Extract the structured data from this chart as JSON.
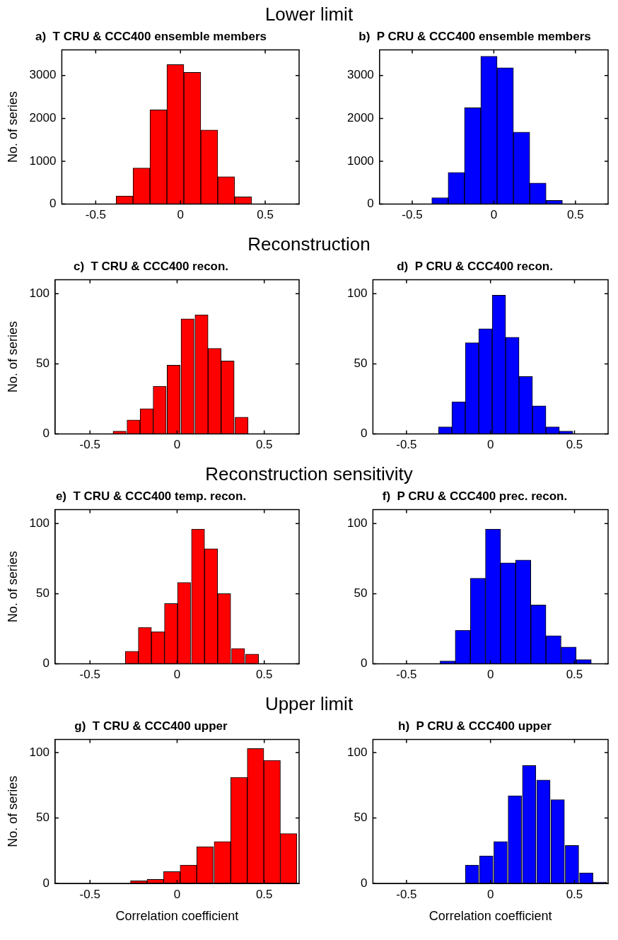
{
  "chart_data": [
    {
      "type": "histogram",
      "title": "a)  T CRU & CCC400 ensemble members",
      "annotations": [
        "Lower limit"
      ],
      "ylabel": "No. of series",
      "color": "#ff0000",
      "bins": [
        -0.38,
        -0.28,
        -0.18,
        -0.08,
        0.02,
        0.12,
        0.22,
        0.32,
        0.42
      ],
      "values": [
        190,
        840,
        2200,
        3255,
        3075,
        1730,
        640,
        170
      ],
      "xlim": [
        -0.7,
        0.7
      ],
      "xticks": [
        -0.5,
        0,
        0.5
      ],
      "ylim": [
        0,
        3600
      ],
      "yticks": [
        0,
        1000,
        2000,
        3000
      ],
      "grid": false
    },
    {
      "type": "histogram",
      "title": "b)  P CRU & CCC400 ensemble members",
      "color": "#0000ff",
      "bins": [
        -0.38,
        -0.28,
        -0.18,
        -0.08,
        0.02,
        0.12,
        0.22,
        0.32,
        0.42
      ],
      "values": [
        150,
        740,
        2250,
        3450,
        3180,
        1680,
        490,
        85
      ],
      "xlim": [
        -0.7,
        0.7
      ],
      "xticks": [
        -0.5,
        0,
        0.5
      ],
      "ylim": [
        0,
        3600
      ],
      "yticks": [
        0,
        1000,
        2000,
        3000
      ],
      "grid": false
    },
    {
      "type": "histogram",
      "title": "c)  T CRU & CCC400 recon.",
      "annotations": [
        "Reconstruction"
      ],
      "ylabel": "No. of series",
      "color": "#ff0000",
      "bins": [
        -0.37,
        -0.29,
        -0.21,
        -0.14,
        -0.06,
        0.02,
        0.1,
        0.18,
        0.25,
        0.33,
        0.41
      ],
      "values": [
        2,
        10,
        18,
        34,
        49,
        82,
        85,
        61,
        52,
        12
      ],
      "xlim": [
        -0.7,
        0.7
      ],
      "xticks": [
        -0.5,
        0,
        0.5
      ],
      "ylim": [
        0,
        110
      ],
      "yticks": [
        0,
        50,
        100
      ],
      "grid": false
    },
    {
      "type": "histogram",
      "title": "d)  P CRU & CCC400 recon.",
      "color": "#0000ff",
      "bins": [
        -0.31,
        -0.23,
        -0.15,
        -0.07,
        0.01,
        0.09,
        0.17,
        0.25,
        0.33,
        0.41,
        0.49
      ],
      "values": [
        5,
        23,
        65,
        75,
        99,
        69,
        41,
        20,
        5,
        2
      ],
      "xlim": [
        -0.7,
        0.7
      ],
      "xticks": [
        -0.5,
        0,
        0.5
      ],
      "ylim": [
        0,
        110
      ],
      "yticks": [
        0,
        50,
        100
      ],
      "grid": false
    },
    {
      "type": "histogram",
      "title": "e)  T CRU & CCC400 temp. recon.",
      "annotations": [
        "Reconstruction sensitivity"
      ],
      "ylabel": "No. of series",
      "color": "#ff0000",
      "bins": [
        -0.3,
        -0.22,
        -0.15,
        -0.07,
        0.0,
        0.08,
        0.16,
        0.23,
        0.31,
        0.39,
        0.47
      ],
      "values": [
        9,
        26,
        23,
        43,
        58,
        96,
        82,
        50,
        11,
        7
      ],
      "xlim": [
        -0.7,
        0.7
      ],
      "xticks": [
        -0.5,
        0,
        0.5
      ],
      "ylim": [
        0,
        110
      ],
      "yticks": [
        0,
        50,
        100
      ],
      "grid": false
    },
    {
      "type": "histogram",
      "title": "f)  P CRU & CCC400 prec. recon.",
      "color": "#0000ff",
      "bins": [
        -0.3,
        -0.21,
        -0.12,
        -0.03,
        0.06,
        0.15,
        0.24,
        0.33,
        0.42,
        0.51,
        0.6
      ],
      "values": [
        2,
        24,
        61,
        96,
        72,
        74,
        42,
        20,
        12,
        3
      ],
      "xlim": [
        -0.7,
        0.7
      ],
      "xticks": [
        -0.5,
        0,
        0.5
      ],
      "ylim": [
        0,
        110
      ],
      "yticks": [
        0,
        50,
        100
      ],
      "grid": false
    },
    {
      "type": "histogram",
      "title": "g)  T CRU & CCC400 upper",
      "annotations": [
        "Upper limit"
      ],
      "ylabel": "No. of series",
      "xlabel": "Correlation coefficient",
      "color": "#ff0000",
      "bins": [
        -0.27,
        -0.17,
        -0.08,
        0.02,
        0.11,
        0.21,
        0.31,
        0.4,
        0.5,
        0.59,
        0.69
      ],
      "values": [
        2,
        3,
        9,
        14,
        28,
        32,
        81,
        103,
        94,
        38
      ],
      "xlim": [
        -0.7,
        0.7
      ],
      "xticks": [
        -0.5,
        0,
        0.5
      ],
      "ylim": [
        0,
        110
      ],
      "yticks": [
        0,
        50,
        100
      ],
      "grid": false
    },
    {
      "type": "histogram",
      "title": "h)  P CRU & CCC400 upper",
      "xlabel": "Correlation coefficient",
      "color": "#0000ff",
      "bins": [
        -0.15,
        -0.07,
        0.02,
        0.1,
        0.19,
        0.27,
        0.36,
        0.44,
        0.53,
        0.61,
        0.69
      ],
      "values": [
        14,
        21,
        32,
        67,
        90,
        79,
        64,
        29,
        8,
        1
      ],
      "xlim": [
        -0.7,
        0.7
      ],
      "xticks": [
        -0.5,
        0,
        0.5
      ],
      "ylim": [
        0,
        110
      ],
      "yticks": [
        0,
        50,
        100
      ],
      "grid": false
    }
  ]
}
